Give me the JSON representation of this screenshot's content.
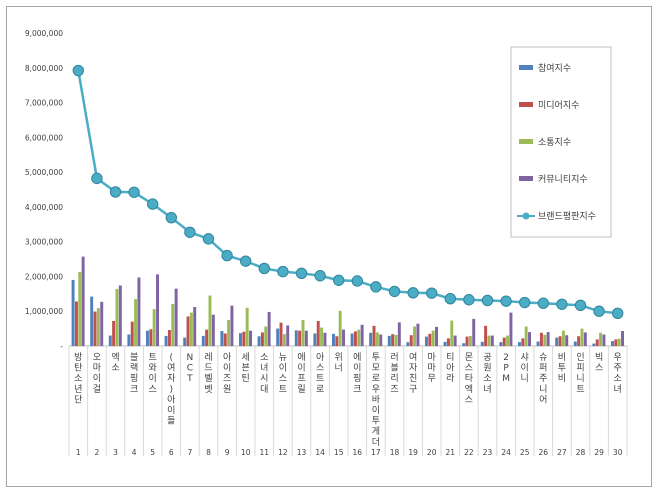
{
  "chart_data": {
    "type": "bar",
    "title": "",
    "xlabel": "",
    "ylabel": "",
    "ylim": [
      0,
      9000000
    ],
    "y_ticks": [
      "-",
      "1,000,000",
      "2,000,000",
      "3,000,000",
      "4,000,000",
      "5,000,000",
      "6,000,000",
      "7,000,000",
      "8,000,000",
      "9,000,000"
    ],
    "y_tick_values": [
      0,
      1000000,
      2000000,
      3000000,
      4000000,
      5000000,
      6000000,
      7000000,
      8000000,
      9000000
    ],
    "grid": false,
    "legend_position": "right",
    "ranks": [
      "1",
      "2",
      "3",
      "4",
      "5",
      "6",
      "7",
      "8",
      "9",
      "10",
      "11",
      "12",
      "13",
      "14",
      "15",
      "16",
      "17",
      "18",
      "19",
      "20",
      "21",
      "22",
      "23",
      "24",
      "25",
      "26",
      "27",
      "28",
      "29",
      "30"
    ],
    "categories": [
      "방탄소년단",
      "오마이걸",
      "엑소",
      "블랙핑크",
      "트와이스",
      "(여자)아이들",
      "NCT",
      "레드벨벳",
      "아이즈원",
      "세븐틴",
      "소녀시대",
      "뉴이스트",
      "에이프릴",
      "아스트로",
      "위너",
      "에이핑크",
      "투모로우바이투게더",
      "러블리즈",
      "여자친구",
      "마마무",
      "티아라",
      "몬스타엑스",
      "공원소녀",
      "2PM",
      "샤이니",
      "슈퍼주니어",
      "비투비",
      "인피니트",
      "빅스",
      "우주소녀"
    ],
    "series": [
      {
        "name": "참여지수",
        "type": "bar",
        "color": "#4f81bd",
        "values": [
          1900000,
          1420000,
          300000,
          330000,
          440000,
          290000,
          240000,
          290000,
          430000,
          370000,
          280000,
          500000,
          450000,
          360000,
          350000,
          360000,
          380000,
          290000,
          110000,
          270000,
          120000,
          80000,
          120000,
          110000,
          110000,
          130000,
          240000,
          130000,
          70000,
          140000
        ]
      },
      {
        "name": "미디어지수",
        "type": "bar",
        "color": "#c0504d",
        "values": [
          1280000,
          990000,
          720000,
          700000,
          480000,
          460000,
          850000,
          470000,
          360000,
          410000,
          390000,
          670000,
          440000,
          720000,
          280000,
          420000,
          580000,
          340000,
          310000,
          350000,
          220000,
          270000,
          580000,
          240000,
          220000,
          380000,
          280000,
          280000,
          190000,
          190000
        ]
      },
      {
        "name": "소통지수",
        "type": "bar",
        "color": "#9bbb59",
        "values": [
          2130000,
          1090000,
          1640000,
          1350000,
          1060000,
          1210000,
          960000,
          1450000,
          750000,
          1100000,
          560000,
          340000,
          750000,
          530000,
          1010000,
          470000,
          390000,
          320000,
          560000,
          440000,
          730000,
          290000,
          300000,
          300000,
          560000,
          320000,
          440000,
          500000,
          380000,
          210000
        ]
      },
      {
        "name": "커뮤니티지수",
        "type": "bar",
        "color": "#8064a2",
        "values": [
          2570000,
          1270000,
          1740000,
          1970000,
          2060000,
          1650000,
          1120000,
          900000,
          1160000,
          440000,
          980000,
          590000,
          440000,
          380000,
          470000,
          610000,
          330000,
          680000,
          640000,
          550000,
          300000,
          780000,
          300000,
          960000,
          400000,
          400000,
          310000,
          390000,
          330000,
          430000
        ]
      },
      {
        "name": "브랜드평판지수",
        "type": "line",
        "color": "#4bacc6",
        "values": [
          7920000,
          4820000,
          4430000,
          4420000,
          4080000,
          3690000,
          3270000,
          3080000,
          2600000,
          2440000,
          2230000,
          2140000,
          2090000,
          2020000,
          1890000,
          1870000,
          1700000,
          1570000,
          1530000,
          1520000,
          1360000,
          1330000,
          1310000,
          1290000,
          1250000,
          1230000,
          1200000,
          1170000,
          1000000,
          940000
        ]
      }
    ]
  }
}
